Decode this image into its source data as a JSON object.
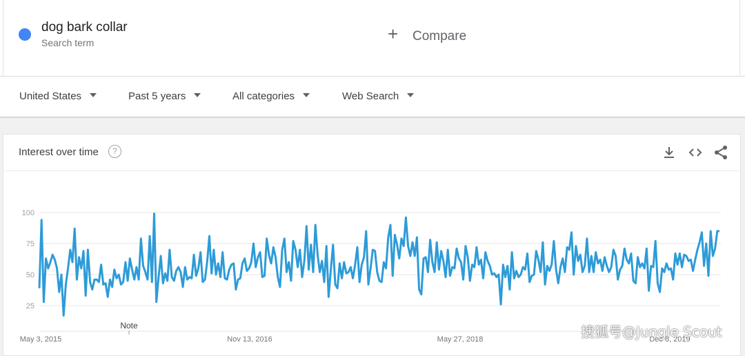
{
  "term": {
    "name": "dog bark collar",
    "subtitle": "Search term",
    "color": "#4285f4"
  },
  "compare": {
    "label": "Compare",
    "icon": "plus-icon"
  },
  "filters": {
    "region": "United States",
    "time_range": "Past 5 years",
    "category": "All categories",
    "search_type": "Web Search"
  },
  "card": {
    "title": "Interest over time",
    "help_icon": "help-icon",
    "tools": [
      "download-icon",
      "embed-icon",
      "share-icon"
    ]
  },
  "chart_data": {
    "type": "line",
    "title": "",
    "xlabel": "",
    "ylabel": "",
    "ylim": [
      0,
      100
    ],
    "yticks": [
      25,
      50,
      75,
      100
    ],
    "grid": true,
    "x_tick_labels": [
      "May 3, 2015",
      "Nov 13, 2016",
      "May 27, 2018",
      "Dec 8, 2019"
    ],
    "annotation": "Note",
    "series": [
      {
        "color": "#2d9bd8",
        "values": [
          39,
          94,
          28,
          63,
          55,
          60,
          66,
          62,
          55,
          36,
          50,
          17,
          42,
          55,
          70,
          60,
          87,
          46,
          64,
          55,
          69,
          33,
          70,
          44,
          38,
          46,
          46,
          44,
          58,
          42,
          43,
          32,
          46,
          40,
          54,
          47,
          50,
          42,
          44,
          60,
          45,
          63,
          54,
          46,
          56,
          46,
          79,
          57,
          52,
          46,
          81,
          44,
          99,
          28,
          48,
          65,
          43,
          51,
          45,
          70,
          48,
          45,
          53,
          56,
          52,
          40,
          56,
          46,
          48,
          47,
          66,
          49,
          55,
          68,
          44,
          46,
          60,
          81,
          51,
          70,
          50,
          59,
          48,
          68,
          47,
          46,
          54,
          58,
          59,
          38,
          46,
          47,
          59,
          63,
          53,
          55,
          60,
          75,
          56,
          64,
          68,
          48,
          49,
          79,
          66,
          59,
          72,
          64,
          48,
          40,
          70,
          79,
          52,
          60,
          45,
          77,
          70,
          56,
          70,
          48,
          61,
          89,
          54,
          74,
          52,
          90,
          66,
          52,
          61,
          44,
          73,
          32,
          54,
          74,
          42,
          39,
          59,
          47,
          60,
          51,
          52,
          56,
          47,
          58,
          72,
          44,
          58,
          64,
          85,
          42,
          55,
          70,
          69,
          52,
          45,
          44,
          60,
          55,
          80,
          90,
          49,
          82,
          74,
          63,
          79,
          73,
          96,
          73,
          65,
          76,
          65,
          80,
          38,
          34,
          63,
          64,
          52,
          78,
          60,
          52,
          76,
          54,
          69,
          61,
          48,
          70,
          49,
          56,
          55,
          71,
          63,
          60,
          46,
          73,
          64,
          45,
          58,
          56,
          72,
          58,
          62,
          47,
          68,
          61,
          57,
          50,
          51,
          48,
          50,
          26,
          58,
          48,
          57,
          38,
          68,
          47,
          53,
          48,
          50,
          56,
          54,
          67,
          44,
          49,
          50,
          69,
          62,
          52,
          76,
          42,
          57,
          53,
          58,
          77,
          54,
          43,
          56,
          63,
          52,
          72,
          70,
          84,
          50,
          73,
          61,
          66,
          52,
          57,
          79,
          52,
          65,
          52,
          68,
          59,
          62,
          53,
          64,
          57,
          52,
          56,
          70,
          65,
          46,
          54,
          57,
          71,
          62,
          59,
          67,
          45,
          43,
          64,
          56,
          59,
          55,
          71,
          37,
          57,
          56,
          77,
          43,
          36,
          55,
          52,
          59,
          54,
          55,
          46,
          67,
          58,
          67,
          56,
          66,
          65,
          61,
          62,
          53,
          62,
          70,
          76,
          84,
          57,
          75,
          49,
          85,
          65,
          71,
          85,
          85
        ]
      }
    ]
  }
}
